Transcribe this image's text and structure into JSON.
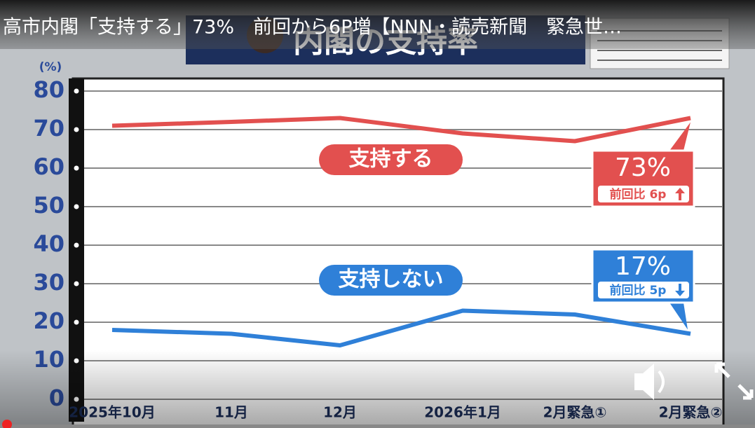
{
  "video_title": "高市内閣「支持する」73%　前回から6P増【NNN・読売新聞　緊急世…",
  "banner": "内閣の支持率",
  "chart_data": {
    "type": "line",
    "y_label": "(%)",
    "categories": [
      "2025年10月",
      "11月",
      "12月",
      "2026年1月",
      "2月緊急①",
      "2月緊急②"
    ],
    "series": [
      {
        "name": "支持する",
        "color": "#e2504f",
        "values": [
          71,
          72,
          73,
          69,
          67,
          73
        ],
        "value_labels": [
          null,
          null,
          null,
          null,
          null,
          "73%"
        ],
        "change": "前回比 6p"
      },
      {
        "name": "支持しない",
        "color": "#2f80d8",
        "values": [
          18,
          17,
          14,
          23,
          22,
          17
        ],
        "value_labels": [
          null,
          null,
          null,
          null,
          null,
          "17%"
        ],
        "change": "前回比 5p"
      }
    ],
    "ylim": [
      0,
      80
    ],
    "yticks": [
      0,
      10,
      20,
      30,
      40,
      50,
      60,
      70,
      80
    ],
    "grid": true
  }
}
